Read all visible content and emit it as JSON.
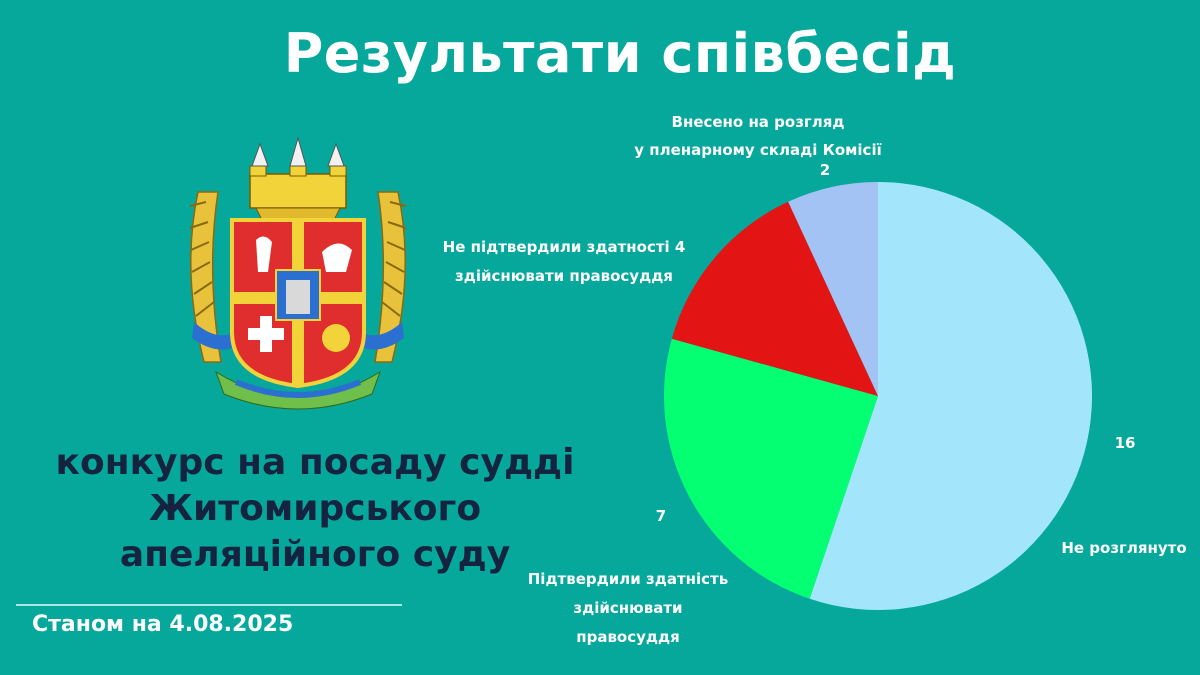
{
  "header": {
    "title": "Результати співбесід"
  },
  "emblem": {
    "name": "coat-of-arms-of-zhytomyr-oblast"
  },
  "contest": {
    "line1": "конкурс на посаду судді",
    "line2": "Житомирського",
    "line3": "апеляційного суду"
  },
  "footer": {
    "date": "Станом на 4.08.2025"
  },
  "colors": {
    "background": "#06a89c",
    "not_reviewed": "#a3e6fc",
    "confirmed": "#05ff72",
    "not_confirmed": "#e31414",
    "submitted": "#a3c3f5"
  },
  "chart_data": {
    "type": "pie",
    "title": "",
    "slices": [
      {
        "label": "Не розглянуто",
        "value": 16,
        "color": "#a3e6fc"
      },
      {
        "label": "Підтвердили здатність здійснювати правосуддя",
        "value": 7,
        "color": "#05ff72"
      },
      {
        "label": "Не підтвердили здатності здійснювати правосуддя",
        "value": 4,
        "color": "#e31414"
      },
      {
        "label": "Внесено на розгляд у пленарному складі Комісії",
        "value": 2,
        "color": "#a3c3f5"
      }
    ],
    "labels": {
      "not_reviewed": {
        "name": "Не розглянуто",
        "value": "16"
      },
      "confirmed": {
        "name_lines": [
          "Підтвердили здатність",
          "здійснювати",
          "правосуддя"
        ],
        "value": "7"
      },
      "not_confirmed": {
        "name_lines": [
          "Не підтвердили здатності 4",
          "здійснювати правосуддя"
        ]
      },
      "submitted": {
        "name_lines": [
          "Внесено на розгляд",
          "у пленарному складі Комісії"
        ],
        "value": "2"
      }
    }
  }
}
